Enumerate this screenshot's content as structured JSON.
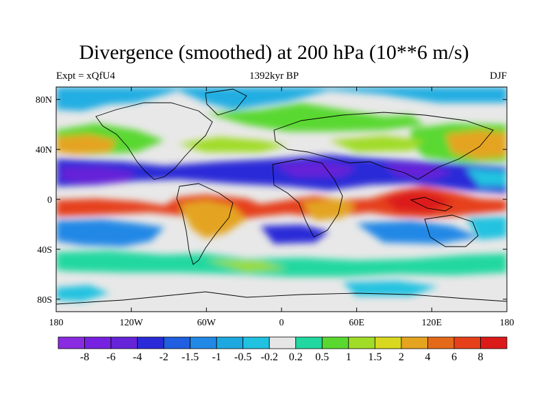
{
  "chart_data": {
    "type": "heatmap",
    "title": "Divergence (smoothed) at 200 hPa (10**6 m/s)",
    "subtitle_left": "Expt = xQfU4",
    "subtitle_center": "1392kyr BP",
    "subtitle_right": "DJF",
    "x_axis": {
      "range": [
        -180,
        180
      ],
      "ticks": [
        {
          "value": -180,
          "label": "180"
        },
        {
          "value": -120,
          "label": "120W"
        },
        {
          "value": -60,
          "label": "60W"
        },
        {
          "value": 0,
          "label": "0"
        },
        {
          "value": 60,
          "label": "60E"
        },
        {
          "value": 120,
          "label": "120E"
        },
        {
          "value": 180,
          "label": "180"
        }
      ]
    },
    "y_axis": {
      "range": [
        -90,
        90
      ],
      "ticks": [
        {
          "value": 80,
          "label": "80N"
        },
        {
          "value": 40,
          "label": "40N"
        },
        {
          "value": 0,
          "label": "0"
        },
        {
          "value": -40,
          "label": "40S"
        },
        {
          "value": -80,
          "label": "80S"
        }
      ]
    },
    "colorbar": {
      "levels": [
        "-8",
        "-6",
        "-4",
        "-2",
        "-1.5",
        "-1",
        "-0.5",
        "-0.2",
        "0.2",
        "0.5",
        "1",
        "1.5",
        "2",
        "4",
        "6",
        "8"
      ],
      "colors": [
        "#8a2be2",
        "#7722e0",
        "#6624d8",
        "#2a2ad8",
        "#1f5fe0",
        "#2288e6",
        "#1ea8e0",
        "#20c2e0",
        "#e6e6e6",
        "#22d8a0",
        "#5ad830",
        "#a0dc28",
        "#d8d820",
        "#e4a420",
        "#e46a1a",
        "#e6401a",
        "#dc1a1a"
      ]
    }
  }
}
